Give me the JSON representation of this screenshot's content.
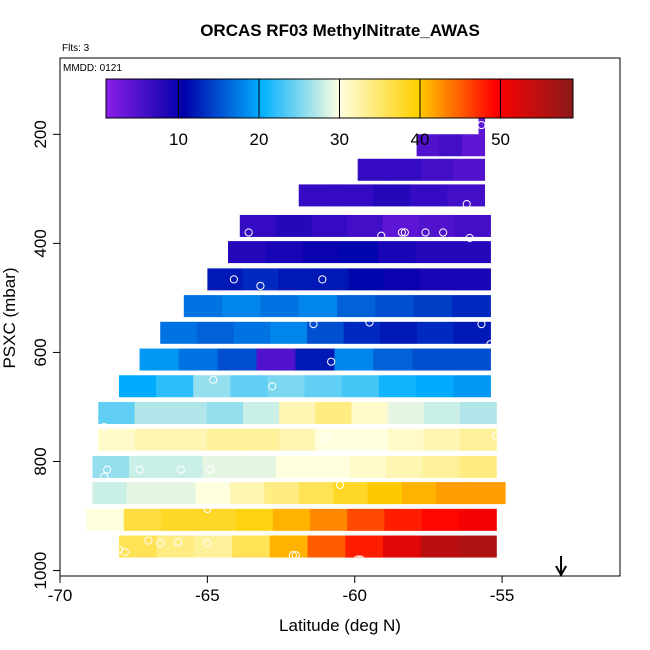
{
  "chart_data": {
    "type": "heatmap",
    "title": "ORCAS RF03 MethylNitrate_AWAS",
    "subtitle_flts": "Flts: 3",
    "subtitle_mmdd": "MMDD: 0121",
    "xlabel": "Latitude (deg N)",
    "ylabel": "PSXC (mbar)",
    "xlim": [
      -70,
      -51
    ],
    "ylim": [
      1010,
      60
    ],
    "x_ticks": [
      "-70",
      "-65",
      "-60",
      "-55"
    ],
    "y_ticks": [
      "200",
      "400",
      "600",
      "800",
      "1000"
    ],
    "colorbar": {
      "range": [
        1,
        59
      ],
      "ticks": [
        "10",
        "20",
        "30",
        "40",
        "50"
      ],
      "colors": [
        "#8a1ee8",
        "#0000aa",
        "#00b0ff",
        "#ffffe0",
        "#ffd000",
        "#ff0000",
        "#8b1a1a"
      ]
    },
    "rows": [
      {
        "p": 180,
        "from": -55.8,
        "to": -55.6,
        "c": [
          4
        ]
      },
      {
        "p": 220,
        "from": -57.9,
        "to": -55.6,
        "c": [
          5,
          6,
          4
        ]
      },
      {
        "p": 265,
        "from": -59.9,
        "to": -55.6,
        "c": [
          7,
          7,
          6,
          5
        ]
      },
      {
        "p": 312,
        "from": -61.9,
        "to": -55.6,
        "c": [
          7,
          7,
          8,
          7,
          6
        ]
      },
      {
        "p": 368,
        "from": -63.9,
        "to": -55.4,
        "c": [
          7,
          8,
          7,
          6,
          4,
          5,
          6
        ]
      },
      {
        "p": 416,
        "from": -64.3,
        "to": -55.4,
        "c": [
          8,
          9,
          10,
          11,
          9,
          8,
          8
        ]
      },
      {
        "p": 466,
        "from": -65.0,
        "to": -55.4,
        "c": [
          12,
          13,
          12,
          12,
          11,
          10,
          9,
          9
        ]
      },
      {
        "p": 515,
        "from": -65.8,
        "to": -55.4,
        "c": [
          17,
          18,
          17,
          18,
          16,
          15,
          14,
          13
        ]
      },
      {
        "p": 564,
        "from": -66.6,
        "to": -55.4,
        "c": [
          17,
          16,
          17,
          18,
          15,
          13,
          12,
          13,
          12
        ]
      },
      {
        "p": 613,
        "from": -67.3,
        "to": -55.4,
        "c": [
          19,
          17,
          15,
          5,
          12,
          18,
          16,
          15,
          15
        ]
      },
      {
        "p": 662,
        "from": -68.0,
        "to": -55.4,
        "c": [
          20,
          22,
          26,
          24,
          25,
          24,
          23,
          21,
          20,
          19
        ]
      },
      {
        "p": 711,
        "from": -68.7,
        "to": -55.2,
        "c": [
          24,
          27,
          27,
          26,
          28,
          32,
          34,
          31,
          29,
          28,
          27
        ]
      },
      {
        "p": 760,
        "from": -68.7,
        "to": -55.2,
        "c": [
          31,
          32,
          32,
          33,
          33,
          32,
          30,
          30,
          31,
          32,
          33
        ]
      },
      {
        "p": 810,
        "from": -68.9,
        "to": -55.2,
        "c": [
          26,
          28,
          28,
          29,
          29,
          30,
          30,
          31,
          32,
          33,
          34
        ]
      },
      {
        "p": 858,
        "from": -68.9,
        "to": -54.9,
        "c": [
          28,
          29,
          29,
          30,
          32,
          34,
          36,
          38,
          40,
          41,
          42,
          42
        ]
      },
      {
        "p": 907,
        "from": -69.1,
        "to": -55.2,
        "c": [
          30,
          37,
          38,
          38,
          39,
          41,
          43,
          46,
          48,
          49,
          50
        ]
      },
      {
        "p": 956,
        "from": -68.0,
        "to": -55.2,
        "c": [
          36,
          34,
          33,
          36,
          41,
          45,
          48,
          52,
          55,
          56
        ]
      }
    ],
    "observations": [
      {
        "lat": -55.7,
        "p": 183
      },
      {
        "lat": -56.2,
        "p": 328
      },
      {
        "lat": -63.6,
        "p": 380
      },
      {
        "lat": -59.1,
        "p": 386
      },
      {
        "lat": -58.4,
        "p": 380
      },
      {
        "lat": -58.3,
        "p": 380
      },
      {
        "lat": -57.6,
        "p": 380
      },
      {
        "lat": -57.0,
        "p": 380
      },
      {
        "lat": -56.1,
        "p": 390
      },
      {
        "lat": -64.1,
        "p": 466
      },
      {
        "lat": -61.1,
        "p": 466
      },
      {
        "lat": -63.2,
        "p": 478
      },
      {
        "lat": -61.4,
        "p": 548
      },
      {
        "lat": -59.5,
        "p": 545
      },
      {
        "lat": -55.7,
        "p": 548
      },
      {
        "lat": -55.4,
        "p": 585
      },
      {
        "lat": -60.8,
        "p": 617
      },
      {
        "lat": -64.8,
        "p": 650
      },
      {
        "lat": -62.8,
        "p": 662
      },
      {
        "lat": -68.5,
        "p": 737
      },
      {
        "lat": -61.0,
        "p": 755
      },
      {
        "lat": -55.2,
        "p": 752
      },
      {
        "lat": -68.4,
        "p": 815
      },
      {
        "lat": -67.3,
        "p": 815
      },
      {
        "lat": -65.9,
        "p": 815
      },
      {
        "lat": -64.9,
        "p": 815
      },
      {
        "lat": -68.5,
        "p": 828
      },
      {
        "lat": -60.5,
        "p": 843
      },
      {
        "lat": -65.0,
        "p": 887
      },
      {
        "lat": -54.9,
        "p": 890
      },
      {
        "lat": -68.9,
        "p": 950
      },
      {
        "lat": -68.0,
        "p": 962
      },
      {
        "lat": -67.8,
        "p": 966
      },
      {
        "lat": -67.0,
        "p": 945
      },
      {
        "lat": -66.6,
        "p": 950
      },
      {
        "lat": -66.0,
        "p": 948
      },
      {
        "lat": -65.0,
        "p": 950
      },
      {
        "lat": -62.1,
        "p": 972
      },
      {
        "lat": -62.0,
        "p": 972
      },
      {
        "lat": -59.9,
        "p": 980
      },
      {
        "lat": -59.8,
        "p": 980
      },
      {
        "lat": -55.1,
        "p": 993
      },
      {
        "lat": -55.0,
        "p": 993
      }
    ],
    "arrow_marker": {
      "lat": -53.0
    }
  }
}
